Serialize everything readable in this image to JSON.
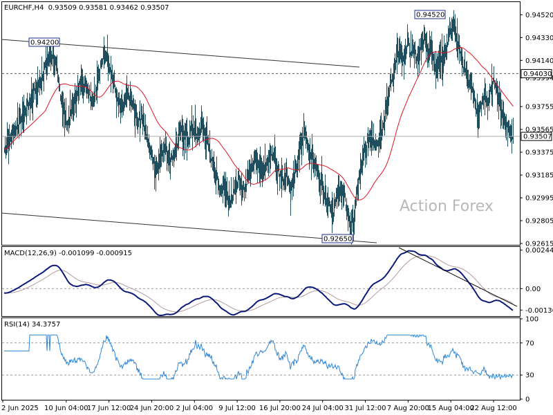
{
  "header": {
    "symbol_tf": "EURCHF,H4",
    "ohlc": "0.93509 0.93581 0.93462 0.93507"
  },
  "watermark": "Action Forex",
  "colors": {
    "bars": "#1f4e5f",
    "ma": "#e0141e",
    "macd_main": "#0b1a7a",
    "macd_signal": "#b59a9a",
    "rsi": "#2f86d6",
    "grid_frame": "#000000"
  },
  "x_axis": {
    "labels": [
      "2 Jun 2025",
      "10 Jun 04:00",
      "17 Jun 12:00",
      "24 Jun 20:00",
      "2 Jul 04:00",
      "9 Jul 12:00",
      "16 Jul 20:00",
      "24 Jul 04:00",
      "31 Jul 12:00",
      "7 Aug 20:00",
      "15 Aug 04:00",
      "22 Aug 12:00"
    ]
  },
  "chart_data": [
    {
      "type": "bar",
      "panel": "price",
      "ylim": [
        0.92615,
        0.9462
      ],
      "yticks": [
        "0.94520",
        "0.94330",
        "0.94140",
        "0.93994",
        "0.93755",
        "0.93565",
        "0.93375",
        "0.93185",
        "0.92995",
        "0.92805",
        "0.92615"
      ],
      "ytick_values": [
        0.9452,
        0.9433,
        0.9414,
        0.93994,
        0.93755,
        0.93565,
        0.93375,
        0.93185,
        0.92995,
        0.92805,
        0.92615
      ],
      "close_series": [
        0.934,
        0.9345,
        0.9352,
        0.9358,
        0.9362,
        0.9368,
        0.9372,
        0.9378,
        0.9385,
        0.939,
        0.9396,
        0.9405,
        0.9412,
        0.942,
        0.9415,
        0.9402,
        0.9385,
        0.9368,
        0.9362,
        0.9373,
        0.9382,
        0.939,
        0.9398,
        0.9394,
        0.9388,
        0.938,
        0.9392,
        0.9405,
        0.9416,
        0.942,
        0.9408,
        0.9395,
        0.938,
        0.9372,
        0.9378,
        0.9385,
        0.938,
        0.937,
        0.9362,
        0.9368,
        0.9355,
        0.9343,
        0.933,
        0.9322,
        0.9335,
        0.9342,
        0.9338,
        0.933,
        0.9337,
        0.9346,
        0.9355,
        0.9352,
        0.9348,
        0.9358,
        0.9355,
        0.935,
        0.936,
        0.9352,
        0.934,
        0.9328,
        0.9318,
        0.9305,
        0.931,
        0.9302,
        0.9298,
        0.9306,
        0.9315,
        0.931,
        0.9305,
        0.9318,
        0.9326,
        0.9333,
        0.933,
        0.9322,
        0.9326,
        0.9332,
        0.9338,
        0.9326,
        0.9318,
        0.9314,
        0.932,
        0.9305,
        0.9318,
        0.933,
        0.9345,
        0.9355,
        0.9342,
        0.9335,
        0.9325,
        0.9318,
        0.931,
        0.9302,
        0.9295,
        0.9288,
        0.9298,
        0.931,
        0.9302,
        0.929,
        0.9275,
        0.9282,
        0.931,
        0.9325,
        0.9338,
        0.9348,
        0.9352,
        0.9345,
        0.9348,
        0.9358,
        0.9372,
        0.939,
        0.9405,
        0.9418,
        0.9422,
        0.941,
        0.943,
        0.942,
        0.9425,
        0.941,
        0.9428,
        0.9435,
        0.942,
        0.9425,
        0.9408,
        0.9418,
        0.9412,
        0.9425,
        0.9438,
        0.9445,
        0.943,
        0.9418,
        0.941,
        0.9402,
        0.9394,
        0.938,
        0.9368,
        0.9376,
        0.9385,
        0.938,
        0.9392,
        0.9398,
        0.938,
        0.937,
        0.9362,
        0.9355,
        0.93507
      ],
      "high": 0.9452,
      "low": 0.9265,
      "annotations": [
        {
          "label": "0.94200",
          "value": 0.942
        },
        {
          "label": "0.94520",
          "value": 0.9452
        },
        {
          "label": "0.92650",
          "value": 0.9265
        }
      ],
      "price_levels": [
        {
          "label": "0.94030",
          "value": 0.9403,
          "style": "dashed"
        },
        {
          "label": "0.93507",
          "value": 0.93507,
          "style": "current"
        }
      ],
      "ma": {
        "period": 20
      }
    },
    {
      "type": "line",
      "panel": "macd",
      "title": "MACD(12,26,9) -0.001099 -0.000915",
      "ylim": [
        -0.0017,
        0.0026
      ],
      "yticks": [
        "0.002445",
        "0.00",
        "-0.00136"
      ],
      "ytick_values": [
        0.002445,
        0.0,
        -0.00136
      ],
      "zero_line": true
    },
    {
      "type": "line",
      "panel": "rsi",
      "title": "RSI(14) 34.3757",
      "ylim": [
        0,
        100
      ],
      "yticks": [
        "100",
        "70",
        "30",
        "0"
      ],
      "ytick_values": [
        100,
        70,
        30,
        0
      ],
      "levels": [
        70,
        30
      ]
    }
  ]
}
